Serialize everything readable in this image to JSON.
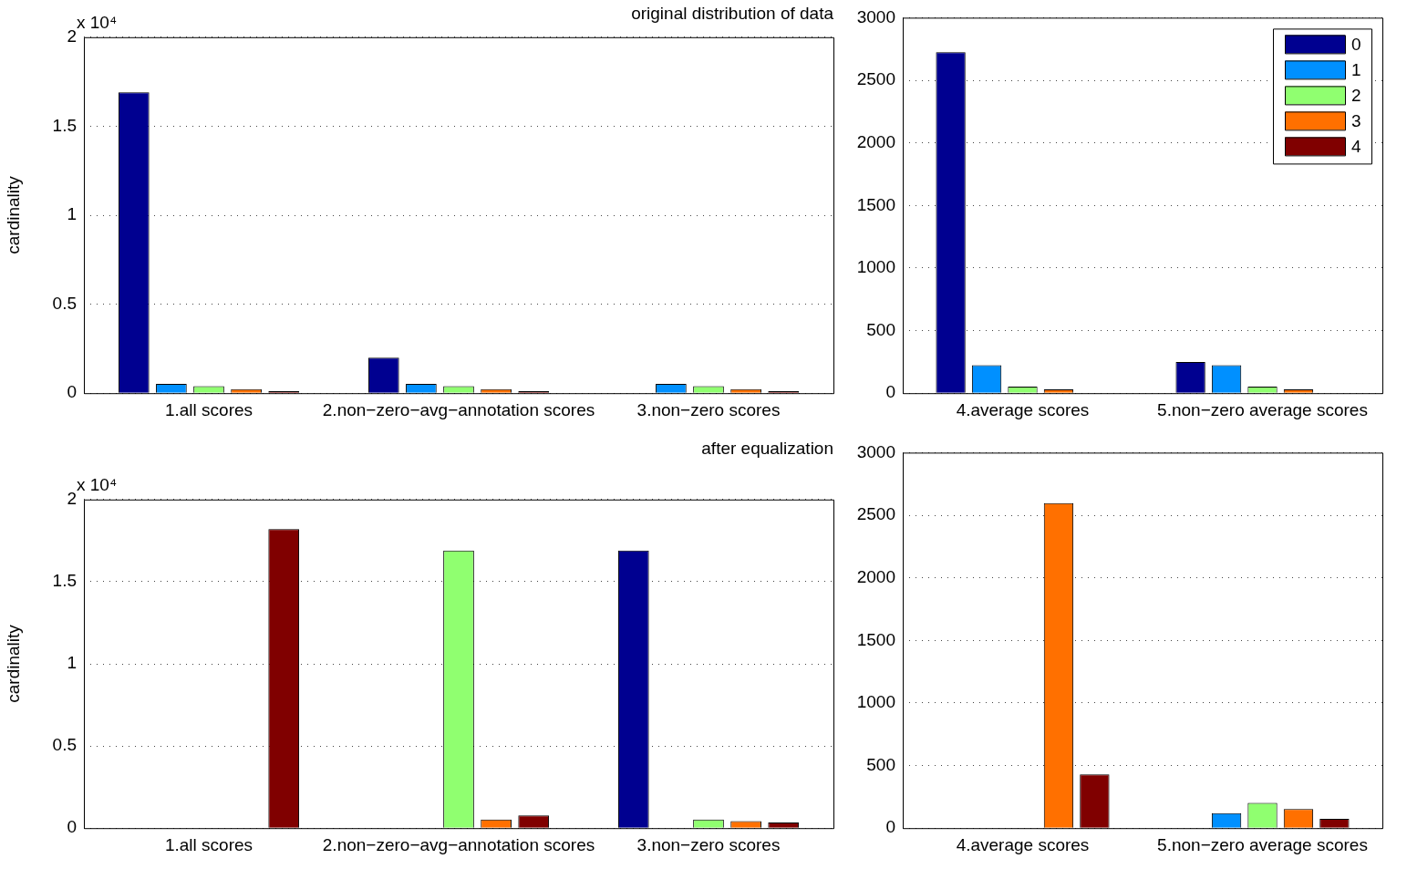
{
  "chart_data": [
    {
      "type": "bar",
      "title": "original distribution of data",
      "ylabel": "cardinality",
      "annotations": [
        "x 10⁴"
      ],
      "categories": [
        "1.all scores",
        "2.non−zero−avg−annotation scores",
        "3.non−zero scores"
      ],
      "ylim": [
        0,
        2
      ],
      "yticks": [
        0,
        0.5,
        1,
        1.5,
        2
      ],
      "grid": "y",
      "legend": false,
      "series": [
        {
          "color": "#000090",
          "values": [
            1.69,
            0.2,
            0
          ]
        },
        {
          "color": "#0090ff",
          "values": [
            0.052,
            0.052,
            0.052
          ]
        },
        {
          "color": "#90ff70",
          "values": [
            0.04,
            0.04,
            0.04
          ]
        },
        {
          "color": "#ff7000",
          "values": [
            0.023,
            0.023,
            0.023
          ]
        },
        {
          "color": "#800000",
          "values": [
            0.011,
            0.011,
            0.011
          ]
        }
      ]
    },
    {
      "type": "bar",
      "categories": [
        "4.average scores",
        "5.non−zero average scores"
      ],
      "ylim": [
        0,
        3000
      ],
      "yticks": [
        0,
        500,
        1000,
        1500,
        2000,
        2500,
        3000
      ],
      "grid": "y",
      "legend": "top right",
      "series": [
        {
          "name": "0",
          "color": "#000090",
          "values": [
            2725,
            249
          ]
        },
        {
          "name": "1",
          "color": "#0090ff",
          "values": [
            224,
            224
          ]
        },
        {
          "name": "2",
          "color": "#90ff70",
          "values": [
            52,
            52
          ]
        },
        {
          "name": "3",
          "color": "#ff7000",
          "values": [
            30,
            30
          ]
        },
        {
          "name": "4",
          "color": "#800000",
          "values": [
            3,
            3
          ]
        }
      ]
    },
    {
      "type": "bar",
      "title": "after equalization",
      "ylabel": "cardinality",
      "annotations": [
        "x 10⁴"
      ],
      "categories": [
        "1.all scores",
        "2.non−zero−avg−annotation scores",
        "3.non−zero scores"
      ],
      "ylim": [
        0,
        2
      ],
      "yticks": [
        0,
        0.5,
        1,
        1.5,
        2
      ],
      "grid": "y",
      "legend": false,
      "series": [
        {
          "color": "#000090",
          "values": [
            0,
            0,
            1.69
          ]
        },
        {
          "color": "#0090ff",
          "values": [
            0,
            0,
            0
          ]
        },
        {
          "color": "#90ff70",
          "values": [
            0,
            1.69,
            0.052
          ]
        },
        {
          "color": "#ff7000",
          "values": [
            0,
            0.052,
            0.043
          ]
        },
        {
          "color": "#800000",
          "values": [
            1.82,
            0.078,
            0.035
          ]
        }
      ]
    },
    {
      "type": "bar",
      "categories": [
        "4.average scores",
        "5.non−zero average scores"
      ],
      "ylim": [
        0,
        3000
      ],
      "yticks": [
        0,
        500,
        1000,
        1500,
        2000,
        2500,
        3000
      ],
      "grid": "y",
      "legend": false,
      "series": [
        {
          "color": "#000090",
          "values": [
            0,
            0
          ]
        },
        {
          "color": "#0090ff",
          "values": [
            0,
            120
          ]
        },
        {
          "color": "#90ff70",
          "values": [
            0,
            202
          ]
        },
        {
          "color": "#ff7000",
          "values": [
            2597,
            153
          ]
        },
        {
          "color": "#800000",
          "values": [
            430,
            74
          ]
        }
      ]
    }
  ]
}
